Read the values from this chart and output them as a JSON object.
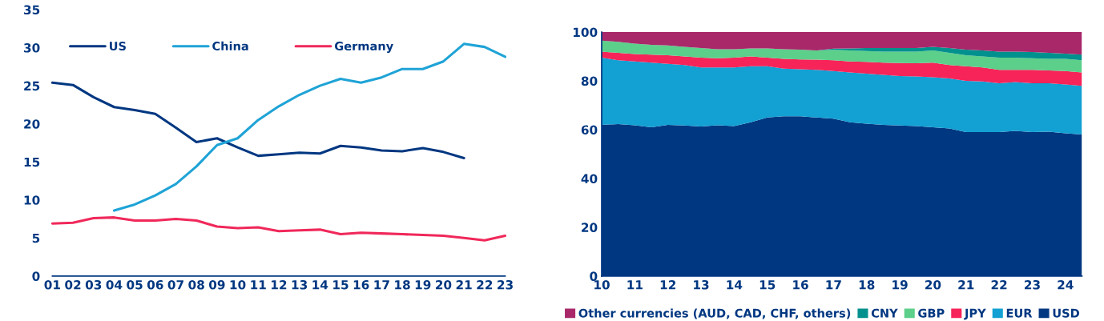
{
  "chart_data": [
    {
      "type": "line",
      "categories": [
        "01",
        "02",
        "03",
        "04",
        "05",
        "06",
        "07",
        "08",
        "09",
        "10",
        "11",
        "12",
        "13",
        "14",
        "15",
        "16",
        "17",
        "18",
        "19",
        "20",
        "21",
        "22",
        "23"
      ],
      "series": [
        {
          "name": "US",
          "color": "#003781",
          "values": [
            25.4,
            25.1,
            23.5,
            22.2,
            21.8,
            21.3,
            19.5,
            17.6,
            18.1,
            16.9,
            15.8,
            16.0,
            16.2,
            16.1,
            17.1,
            16.9,
            16.5,
            16.4,
            16.8,
            16.3,
            15.5,
            null,
            null
          ]
        },
        {
          "name": "China",
          "color": "#1fa3d6",
          "values": [
            null,
            null,
            null,
            8.6,
            9.4,
            10.6,
            12.1,
            14.4,
            17.2,
            18.1,
            20.5,
            22.3,
            23.8,
            25.0,
            25.9,
            25.4,
            26.1,
            27.2,
            27.2,
            28.2,
            30.5,
            30.1,
            28.8
          ]
        },
        {
          "name": "Germany",
          "color": "#f0285a",
          "values": [
            6.9,
            7.0,
            7.6,
            7.7,
            7.3,
            7.3,
            7.5,
            7.3,
            6.5,
            6.3,
            6.4,
            5.9,
            6.0,
            6.1,
            5.5,
            5.7,
            5.6,
            5.5,
            5.4,
            5.3,
            5.0,
            4.7,
            5.3
          ]
        }
      ],
      "ylim": [
        0,
        35
      ],
      "yticks": [
        0,
        5,
        10,
        15,
        20,
        25,
        30,
        35
      ],
      "grid": false,
      "legend": "top"
    },
    {
      "type": "area",
      "stacked": true,
      "x": [
        10,
        10.5,
        11,
        11.5,
        12,
        12.5,
        13,
        13.5,
        14,
        14.5,
        15,
        15.5,
        16,
        16.5,
        17,
        17.5,
        18,
        18.5,
        19,
        19.5,
        20,
        20.5,
        21,
        21.5,
        22,
        22.5,
        23,
        23.5,
        24,
        24.5
      ],
      "series": [
        {
          "name": "USD",
          "color": "#003781",
          "values": [
            62,
            62.3,
            61.8,
            61,
            62,
            61.7,
            61.3,
            61.8,
            61.5,
            63,
            65,
            65.5,
            65.5,
            65,
            64.5,
            63,
            62.5,
            62,
            61.7,
            61.5,
            61,
            60.5,
            59,
            59,
            59,
            59.5,
            59,
            59.2,
            58.5,
            58
          ]
        },
        {
          "name": "EUR",
          "color": "#13a0d3",
          "values": [
            27.5,
            26.2,
            26.2,
            26.5,
            25,
            24.8,
            24.2,
            23.7,
            24,
            23,
            21,
            19.5,
            19.3,
            19.5,
            19.5,
            20.5,
            20.5,
            20.5,
            20.3,
            20.3,
            20.5,
            20.5,
            21,
            20.8,
            20,
            20,
            20,
            19.8,
            20,
            20
          ]
        },
        {
          "name": "JPY",
          "color": "#f62459",
          "values": [
            2.5,
            3,
            3,
            3.3,
            3.5,
            3.5,
            4,
            3.8,
            4,
            4,
            3.5,
            4,
            4,
            4.2,
            4.5,
            4.5,
            4.8,
            5,
            5.3,
            5.4,
            6,
            5.5,
            6,
            5.7,
            5.5,
            5,
            5.5,
            5.3,
            5.5,
            5.5
          ]
        },
        {
          "name": "GBP",
          "color": "#5ccf8a",
          "values": [
            4.5,
            4.5,
            4.3,
            4,
            4,
            4,
            4,
            3.7,
            3.5,
            3.3,
            3.8,
            4,
            4,
            3.8,
            4.2,
            4.5,
            4.4,
            4.5,
            4.7,
            4.8,
            5,
            5,
            4.5,
            4.5,
            5,
            5,
            4.8,
            4.7,
            5,
            5
          ]
        },
        {
          "name": "CNY",
          "color": "#00908d",
          "values": [
            0,
            0,
            0,
            0,
            0,
            0,
            0,
            0,
            0,
            0,
            0,
            0,
            0,
            0,
            0.5,
            0.8,
            1.3,
            1.5,
            1.5,
            1.5,
            1.5,
            2,
            2.3,
            2.5,
            2.5,
            2.5,
            2.5,
            2.5,
            2.2,
            2.3
          ]
        },
        {
          "name": "Other currencies (AUD, CAD, CHF, others)",
          "color": "#a8286a",
          "values": [
            3.5,
            4,
            4.7,
            5.2,
            5.5,
            6,
            6.5,
            7,
            7,
            6.7,
            6.7,
            7,
            7.2,
            7.5,
            6.8,
            6.7,
            6.5,
            6.5,
            6.5,
            6.5,
            6,
            6.5,
            7.2,
            7.5,
            8,
            8,
            8.2,
            8.5,
            8.8,
            9.2
          ]
        }
      ],
      "xlim": [
        10,
        24.5
      ],
      "xticks": [
        10,
        11,
        12,
        13,
        14,
        15,
        16,
        17,
        18,
        19,
        20,
        21,
        22,
        23,
        24
      ],
      "ylim": [
        0,
        100
      ],
      "yticks": [
        0,
        20,
        40,
        60,
        80,
        100
      ],
      "grid": false,
      "legend": "bottom"
    }
  ]
}
